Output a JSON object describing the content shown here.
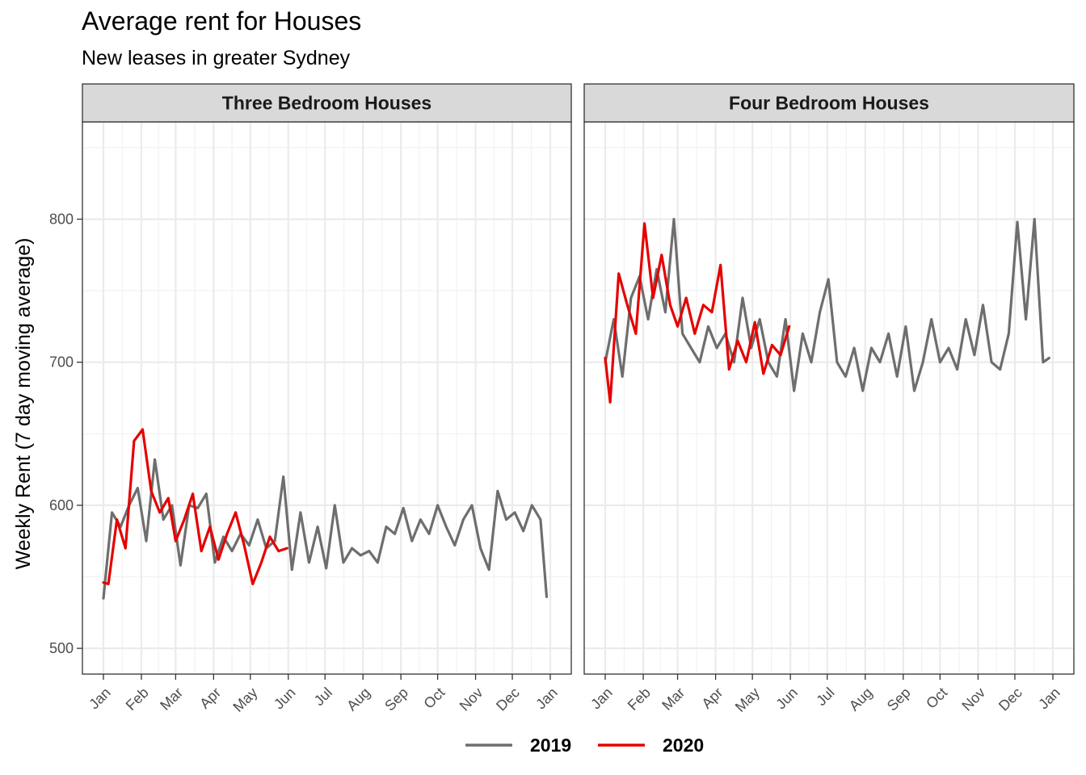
{
  "chart_data": {
    "type": "line",
    "title": "Average rent for Houses",
    "subtitle": "New leases in greater Sydney",
    "ylabel": "Weekly Rent (7 day moving average)",
    "xlabel": "",
    "ylim": [
      482,
      868
    ],
    "yticks": [
      500,
      600,
      700,
      800
    ],
    "x_tick_labels": [
      "Jan",
      "Feb",
      "Mar",
      "Apr",
      "May",
      "Jun",
      "Jul",
      "Aug",
      "Sep",
      "Oct",
      "Nov",
      "Dec",
      "Jan"
    ],
    "grid": true,
    "legend_position": "bottom",
    "colors": {
      "2019": "#6e6e6e",
      "2020": "#e60000"
    },
    "legend": [
      {
        "name": "2019",
        "color": "#6e6e6e"
      },
      {
        "name": "2020",
        "color": "#e60000"
      }
    ],
    "panels": [
      {
        "name": "Three Bedroom Houses",
        "series": [
          {
            "name": "2019",
            "x": [
              "Jan 1",
              "Jan 8",
              "Jan 15",
              "Jan 22",
              "Jan 29",
              "Feb 5",
              "Feb 12",
              "Feb 19",
              "Feb 26",
              "Mar 5",
              "Mar 12",
              "Mar 19",
              "Mar 26",
              "Apr 2",
              "Apr 9",
              "Apr 16",
              "Apr 23",
              "Apr 30",
              "May 7",
              "May 14",
              "May 21",
              "May 28",
              "Jun 4",
              "Jun 11",
              "Jun 18",
              "Jun 25",
              "Jul 2",
              "Jul 9",
              "Jul 16",
              "Jul 23",
              "Jul 30",
              "Aug 6",
              "Aug 13",
              "Aug 20",
              "Aug 27",
              "Sep 3",
              "Sep 10",
              "Sep 17",
              "Sep 24",
              "Oct 1",
              "Oct 8",
              "Oct 15",
              "Oct 22",
              "Oct 29",
              "Nov 5",
              "Nov 12",
              "Nov 19",
              "Nov 26",
              "Dec 3",
              "Dec 10",
              "Dec 17",
              "Dec 24",
              "Dec 29"
            ],
            "values": [
              535,
              595,
              585,
              600,
              612,
              575,
              632,
              590,
              600,
              558,
              600,
              598,
              608,
              560,
              578,
              568,
              580,
              572,
              590,
              570,
              575,
              620,
              555,
              595,
              560,
              585,
              556,
              600,
              560,
              570,
              565,
              568,
              560,
              585,
              580,
              598,
              575,
              590,
              580,
              600,
              585,
              572,
              590,
              600,
              570,
              555,
              610,
              590,
              595,
              582,
              600,
              590,
              536
            ]
          },
          {
            "name": "2020",
            "x": [
              "Jan 1",
              "Jan 5",
              "Jan 12",
              "Jan 19",
              "Jan 26",
              "Feb 2",
              "Feb 9",
              "Feb 16",
              "Feb 23",
              "Mar 1",
              "Mar 8",
              "Mar 15",
              "Mar 22",
              "Mar 29",
              "Apr 5",
              "Apr 12",
              "Apr 19",
              "Apr 26",
              "May 3",
              "May 10",
              "May 17",
              "May 24",
              "May 31"
            ],
            "values": [
              546,
              545,
              590,
              570,
              645,
              653,
              610,
              595,
              605,
              575,
              590,
              608,
              568,
              585,
              562,
              580,
              595,
              572,
              545,
              560,
              578,
              568,
              570
            ]
          }
        ]
      },
      {
        "name": "Four Bedroom Houses",
        "series": [
          {
            "name": "2019",
            "x": [
              "Jan 1",
              "Jan 8",
              "Jan 15",
              "Jan 22",
              "Jan 29",
              "Feb 5",
              "Feb 12",
              "Feb 19",
              "Feb 26",
              "Mar 5",
              "Mar 12",
              "Mar 19",
              "Mar 26",
              "Apr 2",
              "Apr 9",
              "Apr 16",
              "Apr 23",
              "Apr 30",
              "May 7",
              "May 14",
              "May 21",
              "May 28",
              "Jun 4",
              "Jun 11",
              "Jun 18",
              "Jun 25",
              "Jul 2",
              "Jul 9",
              "Jul 16",
              "Jul 23",
              "Jul 30",
              "Aug 6",
              "Aug 13",
              "Aug 20",
              "Aug 27",
              "Sep 3",
              "Sep 10",
              "Sep 17",
              "Sep 24",
              "Oct 1",
              "Oct 8",
              "Oct 15",
              "Oct 22",
              "Oct 29",
              "Nov 5",
              "Nov 12",
              "Nov 19",
              "Nov 26",
              "Dec 3",
              "Dec 10",
              "Dec 17",
              "Dec 24",
              "Dec 29"
            ],
            "values": [
              700,
              730,
              690,
              745,
              760,
              730,
              765,
              735,
              800,
              720,
              710,
              700,
              725,
              710,
              720,
              700,
              745,
              710,
              730,
              700,
              690,
              730,
              680,
              720,
              700,
              735,
              758,
              700,
              690,
              710,
              680,
              710,
              700,
              720,
              690,
              725,
              680,
              700,
              730,
              700,
              710,
              695,
              730,
              705,
              740,
              700,
              695,
              720,
              798,
              730,
              800,
              700,
              703
            ]
          },
          {
            "name": "2020",
            "x": [
              "Jan 1",
              "Jan 5",
              "Jan 12",
              "Jan 19",
              "Jan 26",
              "Feb 2",
              "Feb 9",
              "Feb 16",
              "Feb 23",
              "Mar 1",
              "Mar 8",
              "Mar 15",
              "Mar 22",
              "Mar 29",
              "Apr 5",
              "Apr 12",
              "Apr 19",
              "Apr 26",
              "May 3",
              "May 10",
              "May 17",
              "May 24",
              "May 31"
            ],
            "values": [
              703,
              672,
              762,
              740,
              720,
              797,
              745,
              775,
              740,
              725,
              745,
              720,
              740,
              735,
              768,
              695,
              715,
              700,
              728,
              692,
              712,
              705,
              725
            ]
          }
        ]
      }
    ]
  }
}
